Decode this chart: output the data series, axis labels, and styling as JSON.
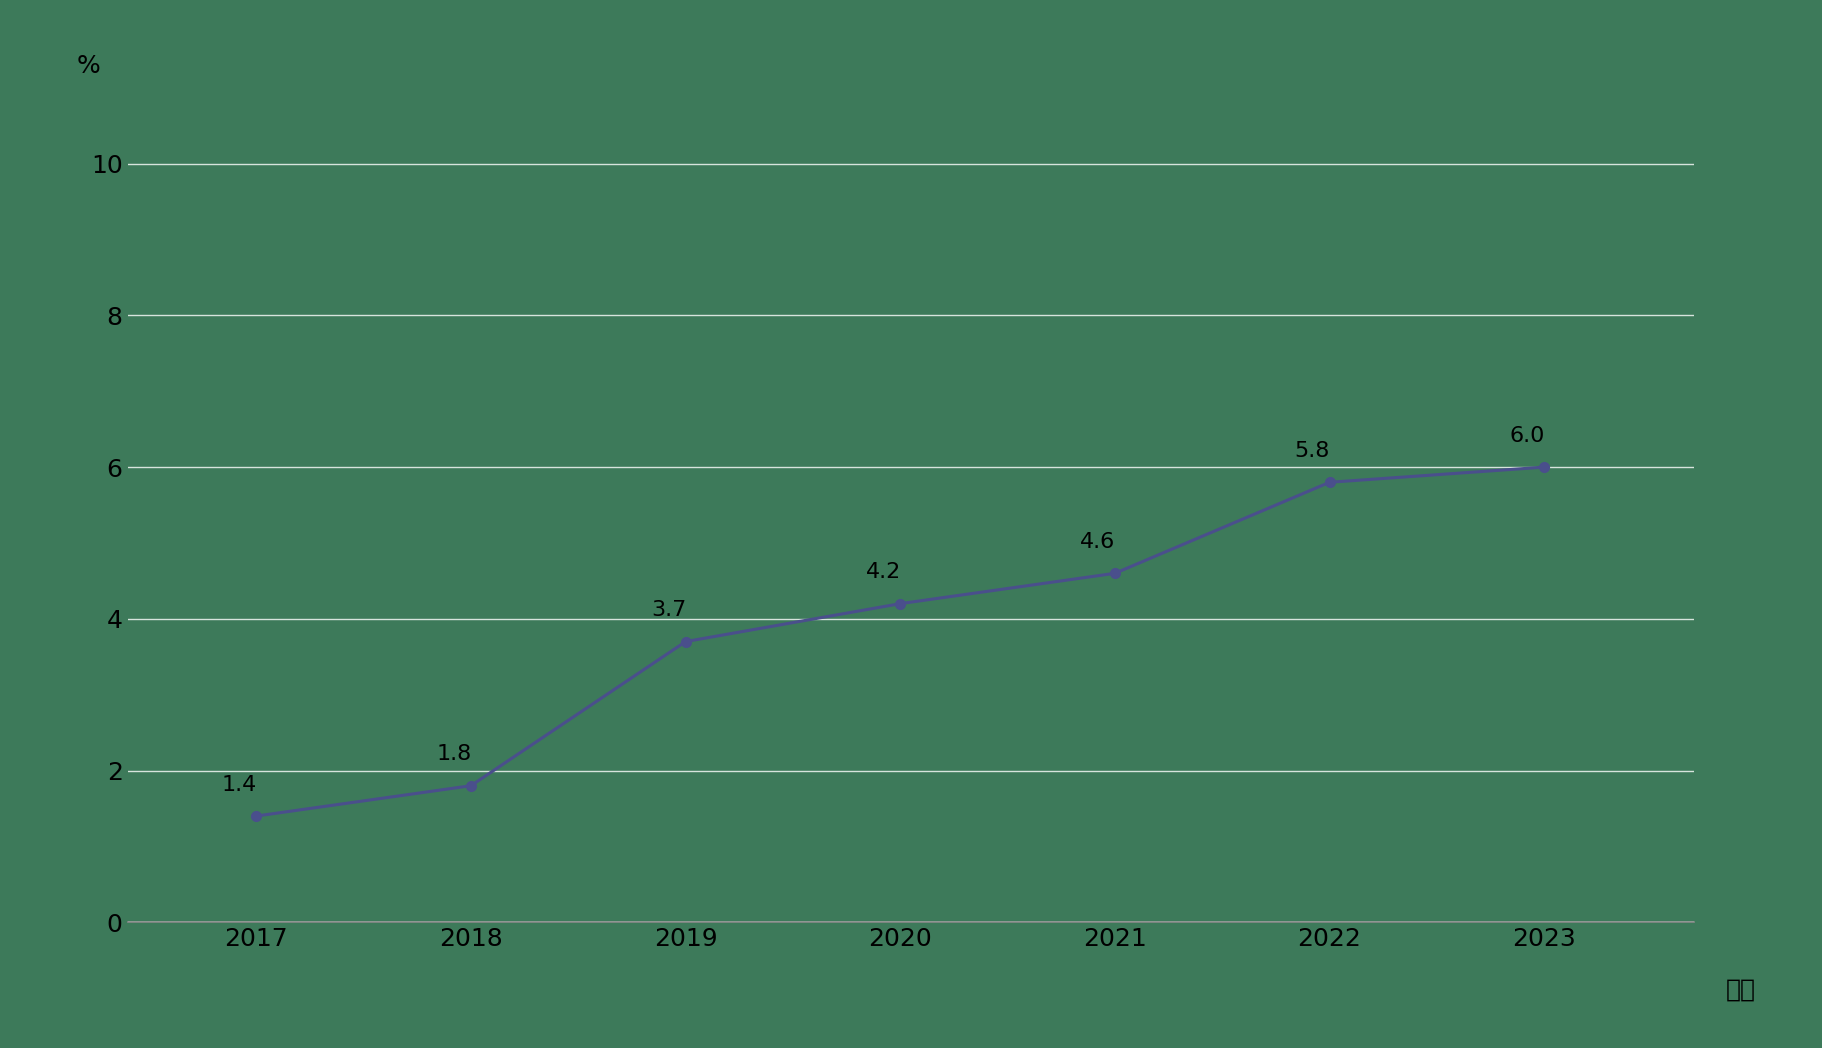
{
  "years": [
    2017,
    2018,
    2019,
    2020,
    2021,
    2022,
    2023
  ],
  "values": [
    1.4,
    1.8,
    3.7,
    4.2,
    4.6,
    5.8,
    6.0
  ],
  "ylim": [
    0,
    10.5
  ],
  "yticks": [
    0,
    2,
    4,
    6,
    8,
    10
  ],
  "xlabel": "年度",
  "ylabel": "%",
  "line_color": "#4a4f8c",
  "marker": "o",
  "marker_size": 7,
  "line_width": 2.2,
  "background_color": "#3d7a5a",
  "plot_bg_color": "#3d7a5a",
  "grid_color": "#ffffff",
  "grid_alpha": 0.8,
  "grid_linewidth": 1.0,
  "tick_label_color": "#000000",
  "annotation_fontsize": 16,
  "tick_fontsize": 18,
  "label_fontsize": 18
}
